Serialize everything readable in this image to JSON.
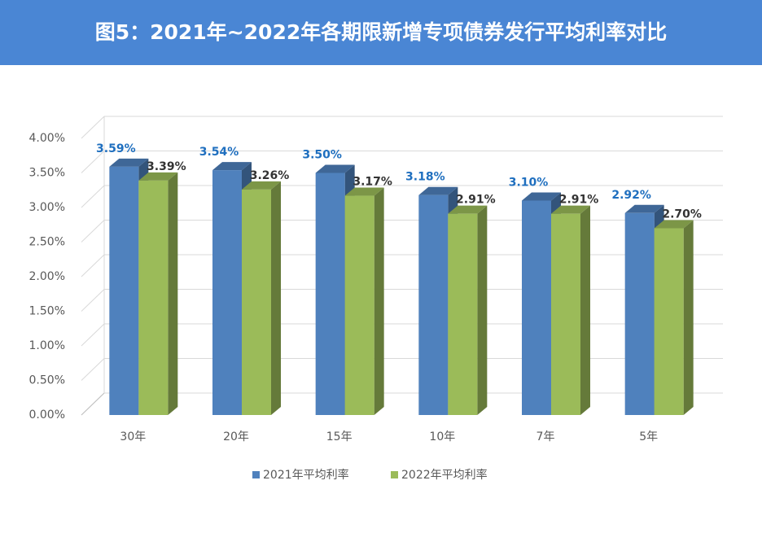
{
  "chart_data": {
    "type": "bar",
    "title": "图5：2021年~2022年各期限新增专项债券发行平均利率对比",
    "categories": [
      "30年",
      "20年",
      "15年",
      "10年",
      "7年",
      "5年"
    ],
    "series": [
      {
        "name": "2021年平均利率",
        "color": "#4f81bd",
        "label_color": "#1f6fbf",
        "values": [
          3.59,
          3.54,
          3.5,
          3.18,
          3.1,
          2.92
        ],
        "value_labels": [
          "3.59%",
          "3.54%",
          "3.50%",
          "3.18%",
          "3.10%",
          "2.92%"
        ]
      },
      {
        "name": "2022年平均利率",
        "color": "#9bbb59",
        "label_color": "#333333",
        "values": [
          3.39,
          3.26,
          3.17,
          2.91,
          2.91,
          2.7
        ],
        "value_labels": [
          "3.39%",
          "3.26%",
          "3.17%",
          "2.91%",
          "2.91%",
          "2.70%"
        ]
      }
    ],
    "ylim": [
      0,
      4
    ],
    "yticks": [
      {
        "value": 0,
        "label": "0.00%"
      },
      {
        "value": 0.5,
        "label": "0.50%"
      },
      {
        "value": 1,
        "label": "1.00%"
      },
      {
        "value": 1.5,
        "label": "1.50%"
      },
      {
        "value": 2,
        "label": "2.00%"
      },
      {
        "value": 2.5,
        "label": "2.50%"
      },
      {
        "value": 3,
        "label": "3.00%"
      },
      {
        "value": 3.5,
        "label": "3.50%"
      },
      {
        "value": 4,
        "label": "4.00%"
      }
    ],
    "grid": true,
    "legend": "bottom"
  }
}
